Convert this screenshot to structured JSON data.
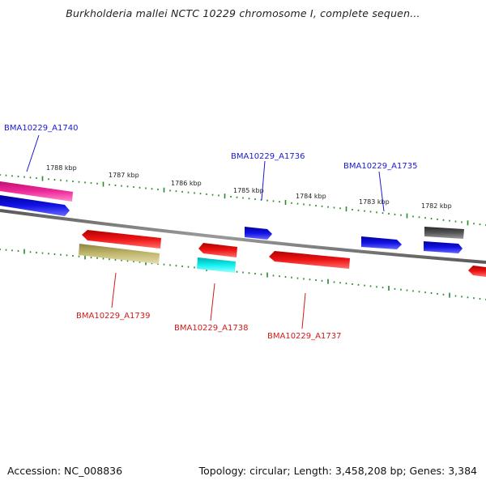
{
  "title": "Burkholderia mallei NCTC 10229 chromosome I, complete sequen...",
  "accession": "Accession: NC_008836",
  "summary": "Topology: circular; Length: 3,458,208 bp; Genes: 3,384",
  "scale_labels": [
    "1788 kbp",
    "1787 kbp",
    "1786 kbp",
    "1785 kbp",
    "1784 kbp",
    "1783 kbp",
    "1782 kbp"
  ],
  "gene_labels": {
    "top": [
      "BMA10229_A1740",
      "BMA10229_A1736",
      "BMA10229_A1735"
    ],
    "bottom": [
      "BMA10229_A1739",
      "BMA10229_A1738",
      "BMA10229_A1737"
    ]
  },
  "colors": {
    "backbone": "#808080",
    "top_label": "#1a1ad0",
    "bottom_label": "#d01a1a",
    "tick": "#2a8a2a",
    "magenta": "#ee2a9a",
    "blue": "#1212e6",
    "red": "#ee1515",
    "olive": "#c2b870",
    "cyan": "#12f0f0",
    "gray": "#555555"
  }
}
